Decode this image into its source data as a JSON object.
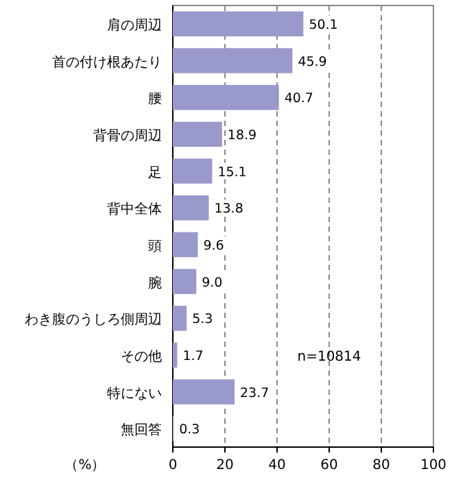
{
  "chart_data": {
    "type": "bar",
    "orientation": "horizontal",
    "xlabel": "（%）",
    "categories": [
      "肩の周辺",
      "首の付け根あたり",
      "腰",
      "背骨の周辺",
      "足",
      "背中全体",
      "頭",
      "腕",
      "わき腹のうしろ側周辺",
      "その他",
      "特にない",
      "無回答"
    ],
    "values": [
      50.1,
      45.9,
      40.7,
      18.9,
      15.1,
      13.8,
      9.6,
      9.0,
      5.3,
      1.7,
      23.7,
      0.3
    ],
    "value_labels": [
      "50.1",
      "45.9",
      "40.7",
      "18.9",
      "15.1",
      "13.8",
      "9.6",
      "9.0",
      "5.3",
      "1.7",
      "23.7",
      "0.3"
    ],
    "color": "#9999cc",
    "xlim": [
      0,
      100
    ],
    "xticks": [
      0,
      20,
      40,
      60,
      80,
      100
    ],
    "grid": "x",
    "annotations": [
      "n=10814"
    ]
  }
}
